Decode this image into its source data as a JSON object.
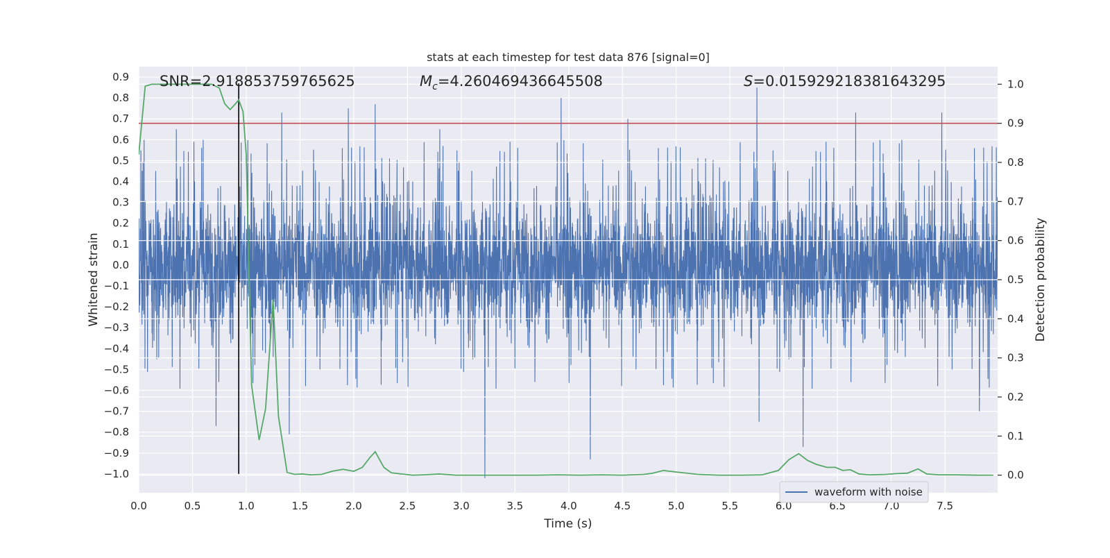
{
  "chart_data": {
    "type": "line",
    "title": "stats at each timestep for test data 876 [signal=0]",
    "xlabel": "Time (s)",
    "ylabel_left": "Whitened strain",
    "ylabel_right": "Detection probability",
    "xlim": [
      0.0,
      7.99
    ],
    "ylim_left": [
      -1.09,
      0.95
    ],
    "ylim_right": [
      -0.045,
      1.045
    ],
    "x_ticks": [
      "0.0",
      "0.5",
      "1.0",
      "1.5",
      "2.0",
      "2.5",
      "3.0",
      "3.5",
      "4.0",
      "4.5",
      "5.0",
      "5.5",
      "6.0",
      "6.5",
      "7.0",
      "7.5"
    ],
    "y_ticks_left": [
      "0.9",
      "0.8",
      "0.7",
      "0.6",
      "0.5",
      "0.4",
      "0.3",
      "0.2",
      "0.1",
      "0.0",
      "−0.1",
      "−0.2",
      "−0.3",
      "−0.4",
      "−0.5",
      "−0.6",
      "−0.7",
      "−0.8",
      "−0.9",
      "−1.0"
    ],
    "y_ticks_right": [
      "1.0",
      "0.9",
      "0.8",
      "0.7",
      "0.6",
      "0.5",
      "0.4",
      "0.3",
      "0.2",
      "0.1",
      "0.0"
    ],
    "grid": true,
    "annotations": {
      "snr": "SNR=2.918853759765625",
      "mc_symbol": "M",
      "mc_sub": "c",
      "mc_value": "=4.260469436645508",
      "s_symbol": "S",
      "s_value": "=0.015929218381643295"
    },
    "threshold_line": {
      "y_right": 0.9,
      "color": "#c44e52"
    },
    "vertical_marker": {
      "x": 0.93,
      "y_left_range": [
        -1.0,
        0.87
      ],
      "color": "#000000"
    },
    "legend": {
      "position": "lower right",
      "entries": [
        "waveform with noise"
      ]
    },
    "series": [
      {
        "name": "waveform with noise",
        "axis": "left",
        "color": "#4c72b0",
        "kind": "noise-waveform",
        "envelope_typical": [
          -0.42,
          0.42
        ],
        "peaks": [
          {
            "x": 0.05,
            "y": 0.6
          },
          {
            "x": 0.35,
            "y": 0.65
          },
          {
            "x": 0.6,
            "y": 0.6
          },
          {
            "x": 0.72,
            "y": -0.77
          },
          {
            "x": 1.33,
            "y": 0.73
          },
          {
            "x": 1.4,
            "y": -0.81
          },
          {
            "x": 1.95,
            "y": 0.75
          },
          {
            "x": 2.2,
            "y": 0.77
          },
          {
            "x": 2.8,
            "y": 0.65
          },
          {
            "x": 3.22,
            "y": -1.02
          },
          {
            "x": 3.93,
            "y": 0.8
          },
          {
            "x": 4.2,
            "y": -0.93
          },
          {
            "x": 4.55,
            "y": 0.7
          },
          {
            "x": 5.75,
            "y": 0.85
          },
          {
            "x": 5.77,
            "y": -0.75
          },
          {
            "x": 6.18,
            "y": -0.87
          },
          {
            "x": 6.67,
            "y": 0.73
          },
          {
            "x": 7.1,
            "y": 0.6
          },
          {
            "x": 7.47,
            "y": 0.73
          },
          {
            "x": 7.82,
            "y": -0.7
          }
        ]
      },
      {
        "name": "",
        "axis": "right",
        "color": "#55a868",
        "x": [
          0.0,
          0.06,
          0.12,
          0.2,
          0.3,
          0.4,
          0.5,
          0.6,
          0.68,
          0.75,
          0.8,
          0.85,
          0.9,
          0.93,
          0.97,
          1.0,
          1.05,
          1.12,
          1.18,
          1.25,
          1.3,
          1.38,
          1.45,
          1.52,
          1.6,
          1.7,
          1.8,
          1.9,
          2.0,
          2.08,
          2.15,
          2.2,
          2.28,
          2.35,
          2.45,
          2.55,
          2.65,
          2.8,
          2.95,
          3.1,
          3.3,
          3.5,
          3.7,
          3.9,
          4.1,
          4.3,
          4.5,
          4.7,
          4.78,
          4.88,
          5.0,
          5.2,
          5.4,
          5.6,
          5.8,
          5.95,
          6.05,
          6.14,
          6.22,
          6.3,
          6.4,
          6.48,
          6.55,
          6.62,
          6.7,
          6.8,
          6.95,
          7.05,
          7.15,
          7.25,
          7.33,
          7.45,
          7.6,
          7.8,
          7.95
        ],
        "values": [
          0.82,
          0.995,
          1.0,
          1.0,
          1.0,
          1.0,
          1.0,
          1.0,
          1.0,
          0.99,
          0.95,
          0.935,
          0.95,
          0.96,
          0.93,
          0.82,
          0.23,
          0.09,
          0.17,
          0.45,
          0.15,
          0.007,
          0.002,
          0.003,
          0.001,
          0.002,
          0.01,
          0.015,
          0.01,
          0.02,
          0.045,
          0.06,
          0.02,
          0.006,
          0.003,
          0.0,
          0.001,
          0.003,
          0.0,
          0.0,
          0.0,
          0.0,
          0.0,
          0.001,
          0.0,
          0.001,
          0.0,
          0.002,
          0.005,
          0.012,
          0.008,
          0.002,
          0.0,
          0.0,
          0.001,
          0.012,
          0.04,
          0.055,
          0.038,
          0.028,
          0.02,
          0.02,
          0.012,
          0.014,
          0.003,
          0.001,
          0.002,
          0.004,
          0.005,
          0.016,
          0.003,
          0.001,
          0.001,
          0.0,
          0.0
        ]
      }
    ]
  }
}
